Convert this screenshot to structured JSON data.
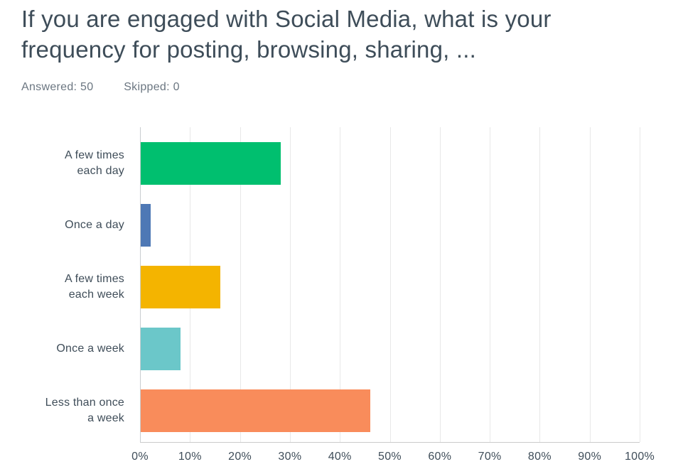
{
  "header": {
    "title": "If you are engaged with Social Media, what is your frequency for posting, browsing, sharing, ...",
    "title_lines": [
      "If you are engaged with Social Media, what is your",
      "frequency for posting, browsing, sharing, ..."
    ],
    "answered": "Answered: 50",
    "skipped": "Skipped: 0"
  },
  "chart_data": {
    "type": "bar",
    "orientation": "horizontal",
    "title": "If you are engaged with Social Media, what is your frequency for posting, browsing, sharing, ...",
    "categories": [
      "A few times each day",
      "Once a day",
      "A few times each week",
      "Once a week",
      "Less than once a week"
    ],
    "category_label_lines": [
      [
        "A few times",
        "each day"
      ],
      [
        "Once a day"
      ],
      [
        "A few times",
        "each week"
      ],
      [
        "Once a week"
      ],
      [
        "Less than once",
        "a week"
      ]
    ],
    "values": [
      28,
      2,
      16,
      8,
      46
    ],
    "unit": "percent",
    "bar_colors": [
      "#00BF6F",
      "#4E78B5",
      "#F4B400",
      "#6BC7C9",
      "#F98C5B"
    ],
    "xlabel": "",
    "ylabel": "",
    "xlim": [
      0,
      100
    ],
    "x_ticks": [
      "0%",
      "10%",
      "20%",
      "30%",
      "40%",
      "50%",
      "60%",
      "70%",
      "80%",
      "90%",
      "100%"
    ],
    "grid": true,
    "legend": "none",
    "colors": {
      "gridline": "#E8E8E8",
      "axis_line": "#C9CDD0",
      "baseline": "#CBCBCB",
      "title_text": "#3E4D59",
      "stats_text": "#6B7681",
      "label_text": "#3F4D59",
      "background": "#FFFFFF"
    }
  }
}
